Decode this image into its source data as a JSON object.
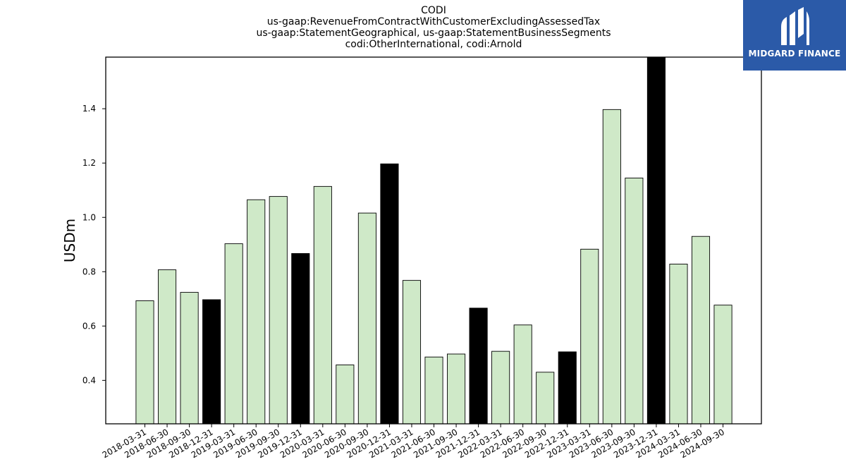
{
  "title_lines": [
    "CODI",
    "us-gaap:RevenueFromContractWithCustomerExcludingAssessedTax",
    "us-gaap:StatementGeographical, us-gaap:StatementBusinessSegments",
    "codi:OtherInternational, codi:Arnold"
  ],
  "brand": {
    "name": "MIDGARD FINANCE",
    "icon": "midgard-logo-icon",
    "background": "#2b5aa8"
  },
  "colors": {
    "quarter_bar": "#cfe9c8",
    "year_end_bar": "#000000",
    "bar_edge": "#000000"
  },
  "chart_data": {
    "type": "bar",
    "title": "CODI",
    "xlabel": "",
    "ylabel": "USDm",
    "ylim": [
      0.24,
      1.59
    ],
    "yticks": [
      0.4,
      0.6,
      0.8,
      1.0,
      1.2,
      1.4
    ],
    "grid": false,
    "legend": "none",
    "categories": [
      "2018-03-31",
      "2018-06-30",
      "2018-09-30",
      "2018-12-31",
      "2019-03-31",
      "2019-06-30",
      "2019-09-30",
      "2019-12-31",
      "2020-03-31",
      "2020-06-30",
      "2020-09-30",
      "2020-12-31",
      "2021-03-31",
      "2021-06-30",
      "2021-09-30",
      "2021-12-31",
      "2022-03-31",
      "2022-06-30",
      "2022-09-30",
      "2022-12-31",
      "2023-03-31",
      "2023-06-30",
      "2023-09-30",
      "2023-12-31",
      "2024-03-31",
      "2024-06-30",
      "2024-09-30"
    ],
    "values": [
      0.693,
      0.807,
      0.724,
      0.697,
      0.903,
      1.065,
      1.077,
      0.867,
      1.114,
      0.457,
      1.016,
      1.197,
      0.768,
      0.486,
      0.497,
      0.666,
      0.507,
      0.604,
      0.43,
      0.505,
      0.883,
      1.397,
      1.145,
      1.59,
      0.828,
      0.93,
      0.677
    ],
    "year_end": [
      false,
      false,
      false,
      true,
      false,
      false,
      false,
      true,
      false,
      false,
      false,
      true,
      false,
      false,
      false,
      true,
      false,
      false,
      false,
      true,
      false,
      false,
      false,
      true,
      false,
      false,
      false
    ]
  }
}
